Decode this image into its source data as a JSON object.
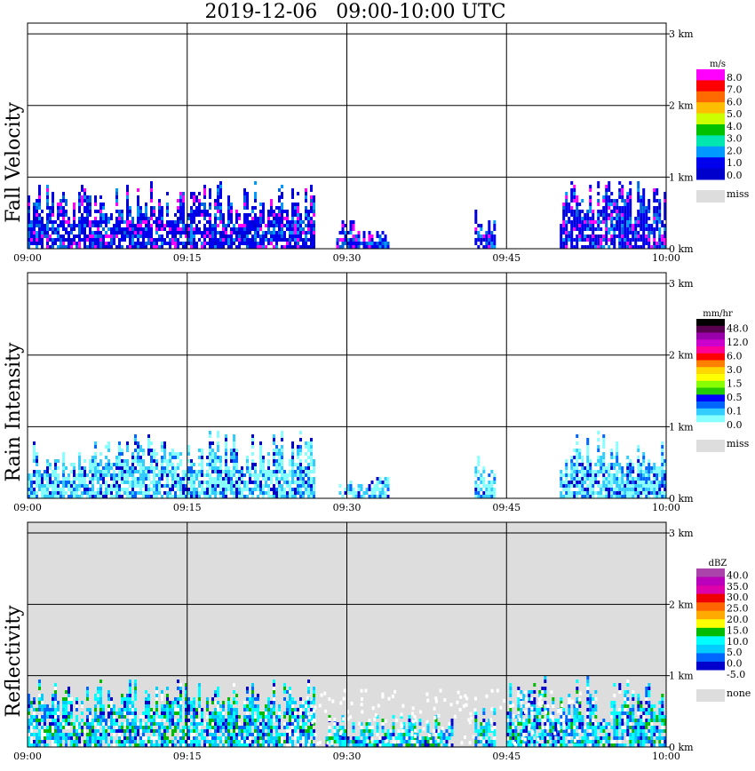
{
  "title": "2019-12-06   09:00-10:00 UTC",
  "x_ticks": [
    "09:00",
    "09:15",
    "09:30",
    "09:45",
    "10:00"
  ],
  "y_ticks": [
    "0 km",
    "1 km",
    "2 km",
    "3 km"
  ],
  "chart_data": [
    {
      "type": "heatmap",
      "ylabel": "Fall Velocity",
      "xlim": [
        "09:00",
        "10:00"
      ],
      "ylim_km": [
        0,
        3.15
      ],
      "grid": true,
      "legend": "right",
      "colorbar": {
        "unit": "m/s",
        "labels": [
          "8.0",
          "7.0",
          "6.0",
          "5.0",
          "4.0",
          "3.0",
          "2.0",
          "1.0",
          "0.0"
        ],
        "colors": [
          "#ff00ff",
          "#ff0000",
          "#ff6a00",
          "#ffbf00",
          "#ccff00",
          "#00c000",
          "#00e6b0",
          "#0099ff",
          "#0000ee",
          "#0000cc"
        ],
        "missing_label": "miss",
        "missing_color": "#dddddd"
      },
      "background_color": "#ffffff",
      "echo_segments": [
        {
          "start": "09:00",
          "end": "09:27",
          "top_km": 0.98
        },
        {
          "start": "09:29",
          "end": "09:31",
          "top_km": 0.45
        },
        {
          "start": "09:31",
          "end": "09:34",
          "top_km": 0.3
        },
        {
          "start": "09:42",
          "end": "09:44",
          "top_km": 0.6
        },
        {
          "start": "09:50",
          "end": "10:00",
          "top_km": 1.0
        }
      ],
      "dominant_values": [
        "1.0",
        "2.0"
      ]
    },
    {
      "type": "heatmap",
      "ylabel": "Rain Intensity",
      "xlim": [
        "09:00",
        "10:00"
      ],
      "ylim_km": [
        0,
        3.15
      ],
      "grid": true,
      "legend": "right",
      "colorbar": {
        "unit": "mm/hr",
        "labels": [
          "48.0",
          "12.0",
          "6.0",
          "3.0",
          "1.5",
          "0.5",
          "0.1",
          "0.0"
        ],
        "colors": [
          "#000000",
          "#5a0050",
          "#9900aa",
          "#cc00cc",
          "#ff0099",
          "#ff0000",
          "#ff8000",
          "#ffd700",
          "#ffff00",
          "#88ff00",
          "#22cc00",
          "#0000ff",
          "#0066ff",
          "#33ccff",
          "#88ffff",
          "#ffffff"
        ],
        "missing_label": "miss",
        "missing_color": "#dddddd"
      },
      "background_color": "#ffffff",
      "echo_segments": [
        {
          "start": "09:00",
          "end": "09:27",
          "top_km": 0.98
        },
        {
          "start": "09:29",
          "end": "09:34",
          "top_km": 0.35
        },
        {
          "start": "09:42",
          "end": "09:44",
          "top_km": 0.6
        },
        {
          "start": "09:50",
          "end": "10:00",
          "top_km": 1.0
        }
      ],
      "dominant_values": [
        "0.1",
        "0.5"
      ]
    },
    {
      "type": "heatmap",
      "ylabel": "Reflectivity",
      "xlim": [
        "09:00",
        "10:00"
      ],
      "ylim_km": [
        0,
        3.15
      ],
      "grid": true,
      "legend": "right",
      "colorbar": {
        "unit": "dBZ",
        "labels": [
          "40.0",
          "35.0",
          "30.0",
          "25.0",
          "20.0",
          "15.0",
          "10.0",
          "5.0",
          "0.0",
          "-5.0"
        ],
        "colors": [
          "#aa44aa",
          "#bb00bb",
          "#dd00aa",
          "#ee0000",
          "#ff6600",
          "#ffaa00",
          "#ffff00",
          "#00bb00",
          "#00ffff",
          "#00ccff",
          "#0066ff",
          "#0000cc",
          "#ffffff"
        ],
        "missing_label": "none",
        "missing_color": "#dddddd"
      },
      "background_color": "#dddddd",
      "echo_segments": [
        {
          "start": "09:00",
          "end": "09:27",
          "top_km": 0.98
        },
        {
          "start": "09:28",
          "end": "09:40",
          "top_km": 0.5
        },
        {
          "start": "09:42",
          "end": "09:44",
          "top_km": 0.6
        },
        {
          "start": "09:45",
          "end": "10:00",
          "top_km": 1.0
        }
      ],
      "dominant_values": [
        "5.0",
        "10.0"
      ]
    }
  ]
}
